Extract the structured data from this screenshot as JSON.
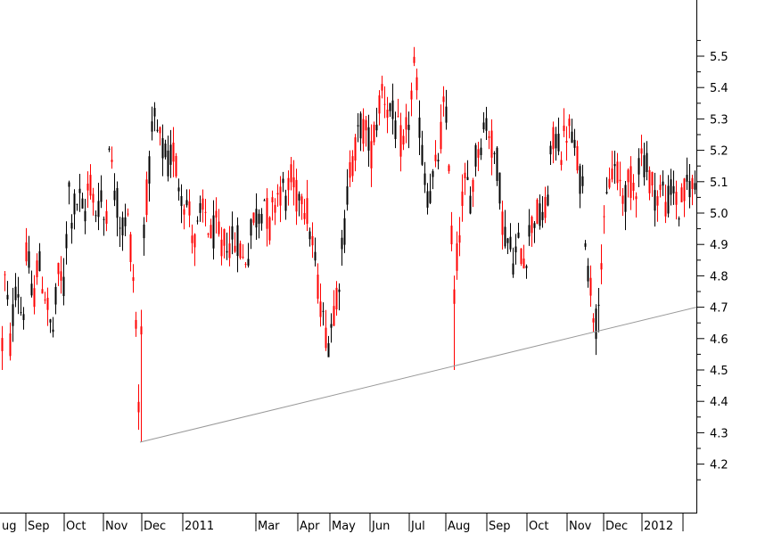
{
  "chart_data": {
    "type": "candlestick",
    "title": "",
    "xlabel": "",
    "ylabel": "",
    "ylim": [
      4.15,
      5.65
    ],
    "grid": false,
    "legend": "none",
    "y_ticks": [
      "4.2",
      "4.3",
      "4.4",
      "4.5",
      "4.6",
      "4.7",
      "4.8",
      "4.9",
      "5.0",
      "5.1",
      "5.2",
      "5.3",
      "5.4",
      "5.5"
    ],
    "x_labels": [
      "ug",
      "Sep",
      "Oct",
      "Nov",
      "Dec",
      "2011",
      "Mar",
      "Apr",
      "May",
      "Jun",
      "Jul",
      "Aug",
      "Sep",
      "Oct",
      "Nov",
      "Dec",
      "2012"
    ],
    "up_color": "#000000",
    "down_color": "#ff0000",
    "trendline": {
      "start": [
        "Nov 2010",
        4.27
      ],
      "end": [
        "Feb 2012",
        4.7
      ],
      "color": "#999999"
    },
    "price_path": [
      [
        0,
        4.45
      ],
      [
        6,
        4.85
      ],
      [
        10,
        4.55
      ],
      [
        18,
        4.8
      ],
      [
        25,
        4.65
      ],
      [
        30,
        4.9
      ],
      [
        36,
        4.7
      ],
      [
        42,
        4.85
      ],
      [
        50,
        4.75
      ],
      [
        58,
        4.6
      ],
      [
        66,
        4.82
      ],
      [
        72,
        4.75
      ],
      [
        76,
        5.1
      ],
      [
        80,
        5.0
      ],
      [
        88,
        5.05
      ],
      [
        94,
        4.98
      ],
      [
        100,
        5.12
      ],
      [
        106,
        5.0
      ],
      [
        112,
        5.05
      ],
      [
        118,
        4.95
      ],
      [
        122,
        5.25
      ],
      [
        126,
        5.1
      ],
      [
        130,
        5.05
      ],
      [
        136,
        4.95
      ],
      [
        142,
        5.0
      ],
      [
        148,
        4.85
      ],
      [
        152,
        4.65
      ],
      [
        156,
        4.3
      ],
      [
        160,
        4.95
      ],
      [
        166,
        5.1
      ],
      [
        172,
        5.3
      ],
      [
        176,
        5.25
      ],
      [
        182,
        5.2
      ],
      [
        188,
        5.15
      ],
      [
        194,
        5.2
      ],
      [
        200,
        5.1
      ],
      [
        206,
        5.05
      ],
      [
        212,
        5.0
      ],
      [
        218,
        4.9
      ],
      [
        224,
        4.98
      ],
      [
        230,
        5.0
      ],
      [
        236,
        4.92
      ],
      [
        242,
        4.95
      ],
      [
        248,
        4.88
      ],
      [
        254,
        4.92
      ],
      [
        260,
        4.9
      ],
      [
        266,
        4.92
      ],
      [
        272,
        4.85
      ],
      [
        278,
        4.88
      ],
      [
        284,
        4.98
      ],
      [
        290,
        5.0
      ],
      [
        296,
        5.05
      ],
      [
        302,
        4.95
      ],
      [
        308,
        5.05
      ],
      [
        314,
        5.08
      ],
      [
        320,
        5.05
      ],
      [
        326,
        5.1
      ],
      [
        332,
        5.05
      ],
      [
        338,
        5.08
      ],
      [
        344,
        5.0
      ],
      [
        350,
        4.9
      ],
      [
        354,
        4.8
      ],
      [
        358,
        4.75
      ],
      [
        362,
        4.65
      ],
      [
        368,
        4.6
      ],
      [
        374,
        4.7
      ],
      [
        380,
        4.8
      ],
      [
        386,
        4.95
      ],
      [
        392,
        5.15
      ],
      [
        398,
        5.2
      ],
      [
        404,
        5.28
      ],
      [
        410,
        5.25
      ],
      [
        416,
        5.2
      ],
      [
        422,
        5.3
      ],
      [
        428,
        5.4
      ],
      [
        434,
        5.35
      ],
      [
        440,
        5.3
      ],
      [
        446,
        5.25
      ],
      [
        452,
        5.2
      ],
      [
        458,
        5.3
      ],
      [
        464,
        5.45
      ],
      [
        468,
        5.35
      ],
      [
        474,
        5.15
      ],
      [
        480,
        5.05
      ],
      [
        486,
        5.1
      ],
      [
        492,
        5.2
      ],
      [
        498,
        5.35
      ],
      [
        504,
        5.15
      ],
      [
        508,
        4.7
      ],
      [
        512,
        4.85
      ],
      [
        516,
        5.0
      ],
      [
        522,
        5.1
      ],
      [
        528,
        5.05
      ],
      [
        534,
        5.2
      ],
      [
        540,
        5.25
      ],
      [
        546,
        5.3
      ],
      [
        552,
        5.2
      ],
      [
        558,
        5.15
      ],
      [
        564,
        4.95
      ],
      [
        570,
        4.9
      ],
      [
        576,
        4.85
      ],
      [
        582,
        4.9
      ],
      [
        588,
        4.85
      ],
      [
        594,
        4.95
      ],
      [
        600,
        5.0
      ],
      [
        606,
        4.98
      ],
      [
        612,
        5.0
      ],
      [
        618,
        5.2
      ],
      [
        624,
        5.25
      ],
      [
        630,
        5.2
      ],
      [
        636,
        5.28
      ],
      [
        642,
        5.22
      ],
      [
        648,
        5.15
      ],
      [
        654,
        5.05
      ],
      [
        658,
        4.85
      ],
      [
        664,
        4.72
      ],
      [
        668,
        4.65
      ],
      [
        672,
        4.8
      ],
      [
        676,
        4.9
      ],
      [
        682,
        5.1
      ],
      [
        688,
        5.15
      ],
      [
        694,
        5.1
      ],
      [
        700,
        5.05
      ],
      [
        706,
        5.1
      ],
      [
        712,
        5.08
      ],
      [
        718,
        5.2
      ],
      [
        724,
        5.15
      ],
      [
        730,
        5.1
      ],
      [
        736,
        5.05
      ],
      [
        742,
        5.08
      ],
      [
        748,
        5.02
      ],
      [
        754,
        5.1
      ],
      [
        760,
        5.0
      ],
      [
        766,
        5.05
      ],
      [
        772,
        5.1
      ],
      [
        778,
        5.08
      ]
    ]
  }
}
